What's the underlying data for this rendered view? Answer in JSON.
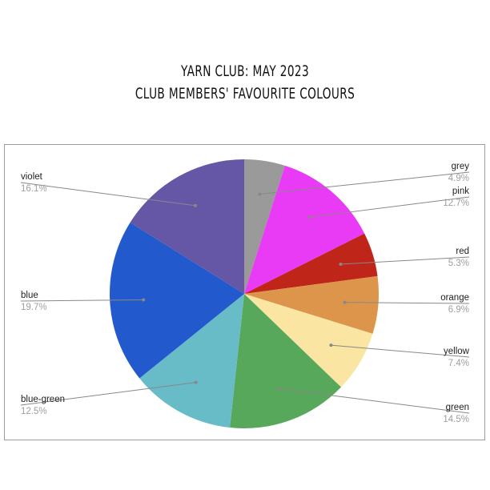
{
  "chart_data": {
    "type": "pie",
    "title": "YARN CLUB: MAY 2023",
    "subtitle": "CLUB MEMBERS' FAVOURITE COLOURS",
    "start_angle": "12 o'clock, clockwise",
    "legend": "labelled slices",
    "slices": [
      {
        "name": "grey",
        "value": 4.9,
        "color": "#9a9a9a"
      },
      {
        "name": "pink",
        "value": 12.7,
        "color": "#e93bf5"
      },
      {
        "name": "red",
        "value": 5.3,
        "color": "#bf2519"
      },
      {
        "name": "orange",
        "value": 6.9,
        "color": "#dc954b"
      },
      {
        "name": "yellow",
        "value": 7.4,
        "color": "#fae6a2"
      },
      {
        "name": "green",
        "value": 14.5,
        "color": "#57a85b"
      },
      {
        "name": "blue-green",
        "value": 12.5,
        "color": "#67bcc7"
      },
      {
        "name": "blue",
        "value": 19.7,
        "color": "#2259cc"
      },
      {
        "name": "violet",
        "value": 16.1,
        "color": "#6657a6"
      }
    ]
  }
}
